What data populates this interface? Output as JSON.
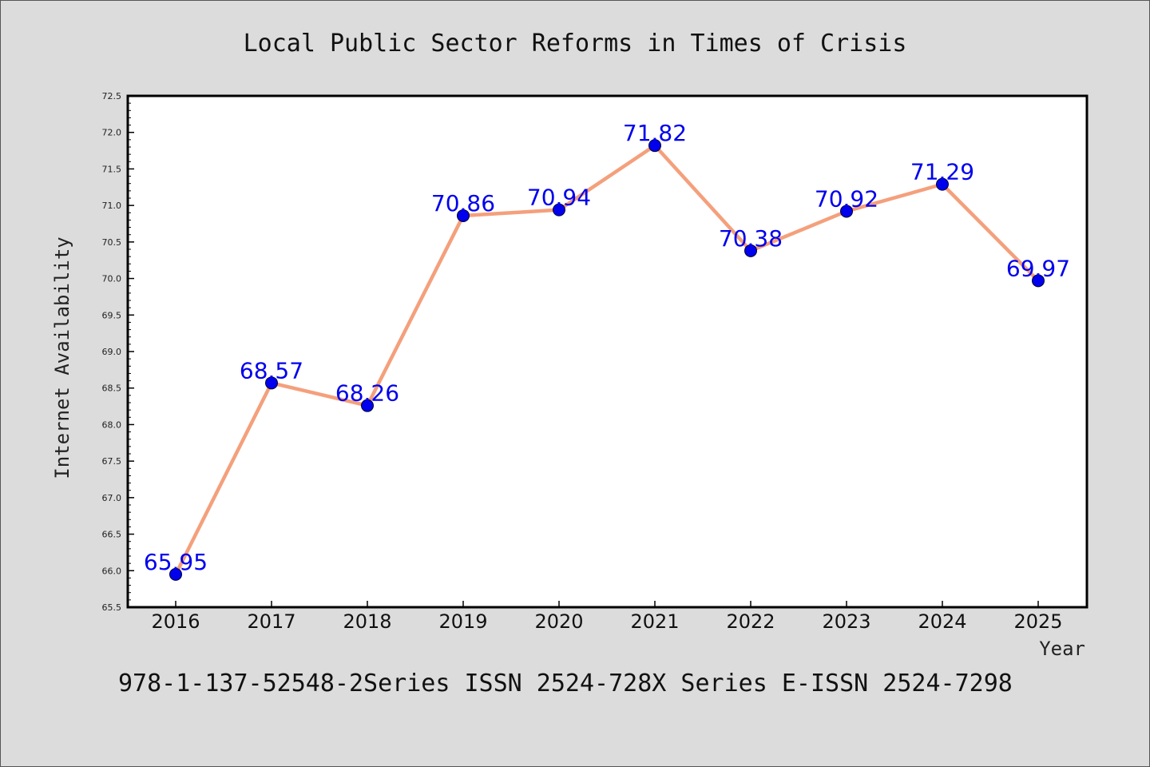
{
  "chart_data": {
    "type": "line",
    "title": "Local Public Sector Reforms in Times of Crisis",
    "xlabel": "Year",
    "ylabel": "Internet Availability",
    "categories": [
      "2016",
      "2017",
      "2018",
      "2019",
      "2020",
      "2021",
      "2022",
      "2023",
      "2024",
      "2025"
    ],
    "values": [
      65.95,
      68.57,
      68.26,
      70.86,
      70.94,
      71.82,
      70.38,
      70.92,
      71.29,
      69.97
    ],
    "data_labels": [
      "65.95",
      "68.57",
      "68.26",
      "70.86",
      "70.94",
      "71.82",
      "70.38",
      "70.92",
      "71.29",
      "69.97"
    ],
    "ylim": [
      65.5,
      72.5
    ],
    "yticks": [
      "65.5",
      "66.0",
      "66.5",
      "67.0",
      "67.5",
      "68.0",
      "68.5",
      "69.0",
      "69.5",
      "70.0",
      "70.5",
      "71.0",
      "71.5",
      "72.0",
      "72.5"
    ],
    "grid": false,
    "legend": "none",
    "line_color": "#f4a07c",
    "marker_color": "#0000ee",
    "label_color": "#0000ee",
    "footer": "978-1-137-52548-2Series ISSN 2524-728X Series E-ISSN 2524-7298"
  }
}
